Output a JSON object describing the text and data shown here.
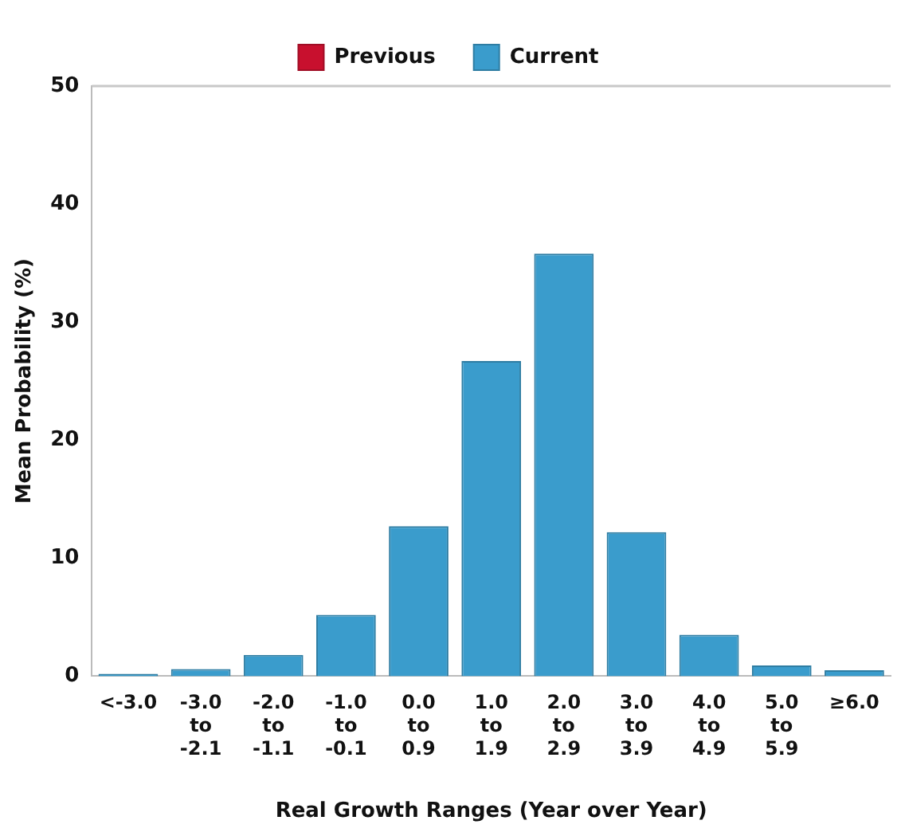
{
  "chart_data": {
    "type": "bar",
    "xlabel": "Real Growth Ranges (Year over Year)",
    "ylabel": "Mean Probability (%)",
    "categories": [
      "<-3.0",
      "-3.0 to -2.1",
      "-2.0 to -1.1",
      "-1.0 to -0.1",
      "0.0 to 0.9",
      "1.0 to 1.9",
      "2.0 to 2.9",
      "3.0 to 3.9",
      "4.0 to 4.9",
      "5.0 to 5.9",
      "≥6.0"
    ],
    "series": [
      {
        "name": "Previous",
        "color": "#c8102e",
        "values": [
          null,
          null,
          null,
          null,
          null,
          null,
          null,
          null,
          null,
          null,
          null
        ]
      },
      {
        "name": "Current",
        "color": "#3a9ccc",
        "values": [
          0.2,
          0.6,
          1.8,
          5.2,
          12.7,
          26.7,
          35.8,
          12.2,
          3.5,
          0.9,
          0.5
        ]
      }
    ],
    "ylim": [
      0,
      50
    ],
    "yticks": [
      0,
      10,
      20,
      30,
      40,
      50
    ],
    "grid": false,
    "legend": "top"
  }
}
